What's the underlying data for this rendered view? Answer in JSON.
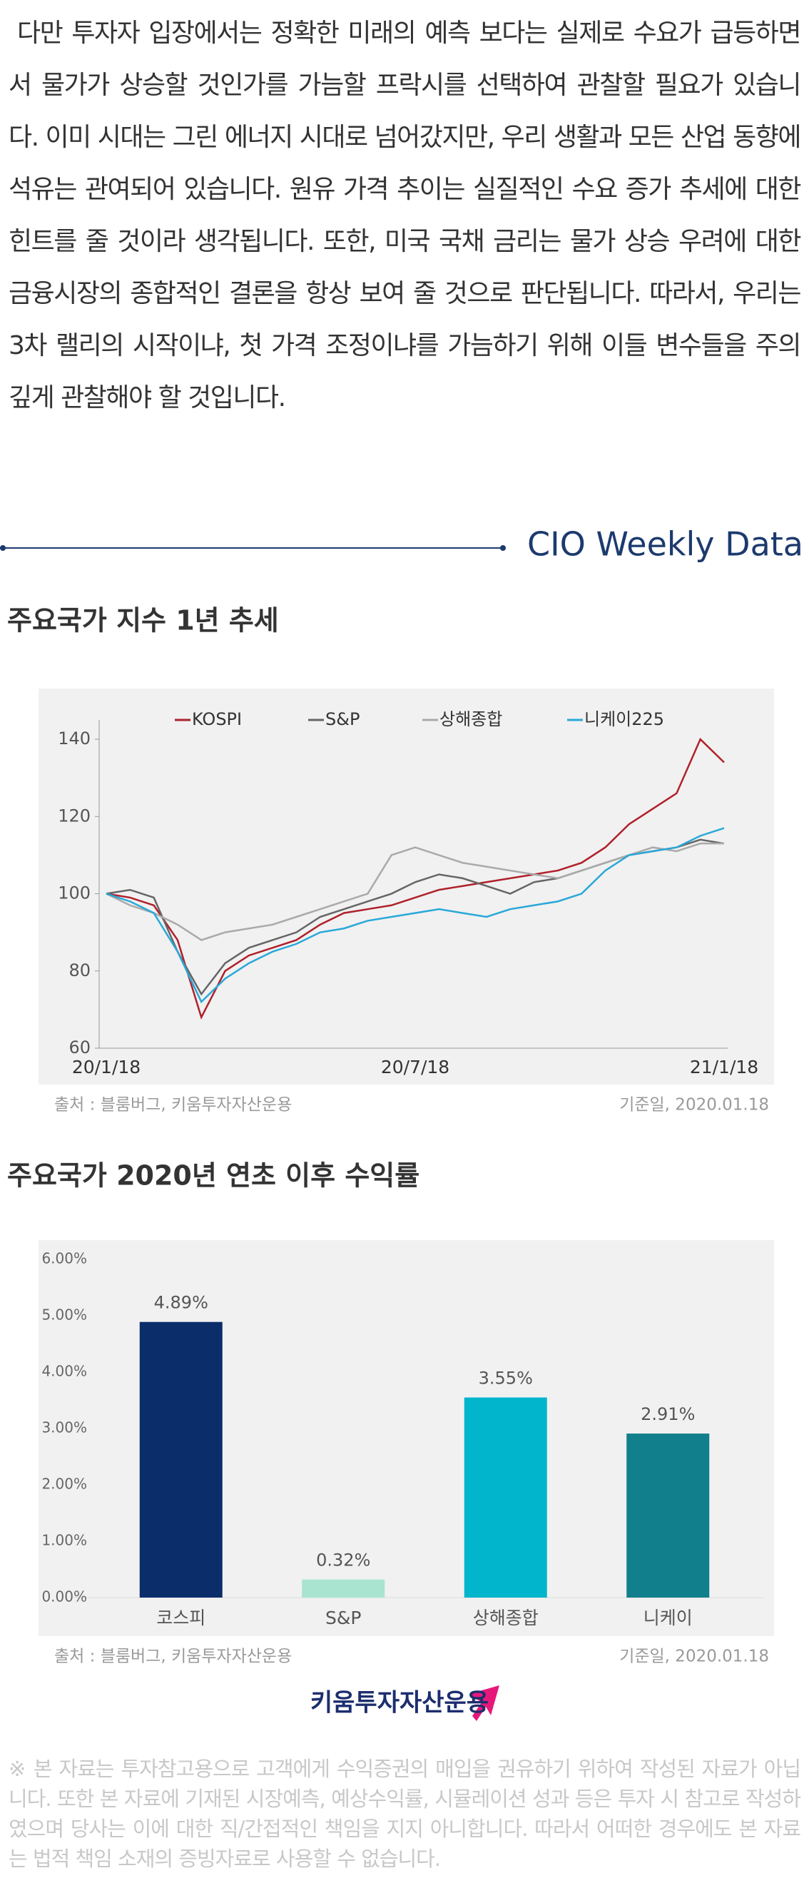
{
  "paragraph": "다만 투자자 입장에서는 정확한 미래의 예측 보다는 실제로 수요가 급등하면서 물가가 상승할 것인가를 가늠할 프락시를 선택하여 관찰할 필요가 있습니다. 이미 시대는 그린 에너지 시대로 넘어갔지만, 우리 생활과 모든 산업 동향에 석유는 관여되어 있습니다. 원유 가격 추이는 실질적인 수요 증가 추세에 대한 힌트를 줄 것이라 생각됩니다. 또한, 미국 국채 금리는 물가 상승 우려에 대한 금융시장의 종합적인 결론을 항상 보여 줄 것으로 판단됩니다. 따라서, 우리는 3차 랠리의 시작이냐, 첫 가격 조정이냐를 가늠하기 위해 이들 변수들을 주의 깊게 관찰해야 할 것입니다.",
  "section_label": "CIO Weekly Data",
  "chart_data": [
    {
      "type": "line",
      "title": "주요국가 지수 1년 추세",
      "categories": [
        "20/1/18",
        null,
        null,
        null,
        null,
        null,
        null,
        null,
        null,
        null,
        null,
        null,
        null,
        "20/7/18",
        null,
        null,
        null,
        null,
        null,
        null,
        null,
        null,
        null,
        null,
        null,
        null,
        "21/1/18"
      ],
      "series": [
        {
          "name": "KOSPI",
          "color": "#b0202a",
          "values": [
            100,
            99,
            97,
            88,
            68,
            80,
            84,
            86,
            88,
            92,
            95,
            96,
            97,
            99,
            101,
            102,
            103,
            104,
            105,
            106,
            108,
            112,
            118,
            122,
            126,
            140,
            134
          ]
        },
        {
          "name": "S&P",
          "color": "#666666",
          "values": [
            100,
            101,
            99,
            85,
            74,
            82,
            86,
            88,
            90,
            94,
            96,
            98,
            100,
            103,
            105,
            104,
            102,
            100,
            103,
            104,
            106,
            108,
            110,
            111,
            112,
            114,
            113
          ]
        },
        {
          "name": "상해종합",
          "color": "#aaaaaa",
          "values": [
            100,
            97,
            95,
            92,
            88,
            90,
            91,
            92,
            94,
            96,
            98,
            100,
            110,
            112,
            110,
            108,
            107,
            106,
            105,
            104,
            106,
            108,
            110,
            112,
            111,
            113,
            113
          ]
        },
        {
          "name": "니케이225",
          "color": "#29a8d8",
          "values": [
            100,
            98,
            95,
            85,
            72,
            78,
            82,
            85,
            87,
            90,
            91,
            93,
            94,
            95,
            96,
            95,
            94,
            96,
            97,
            98,
            100,
            106,
            110,
            111,
            112,
            115,
            117
          ]
        }
      ],
      "ylim": [
        60,
        145
      ],
      "yticks": [
        60,
        80,
        100,
        120,
        140
      ],
      "grid": false,
      "legend": "top",
      "source": "출처 : 블룸버그, 키움투자자산운용",
      "date": "기준일, 2020.01.18"
    },
    {
      "type": "bar",
      "title": "주요국가 2020년 연초 이후 수익률",
      "categories": [
        "코스피",
        "S&P",
        "상해종합",
        "니케이"
      ],
      "values": [
        4.89,
        0.32,
        3.55,
        2.91
      ],
      "value_labels": [
        "4.89%",
        "0.32%",
        "3.55%",
        "2.91%"
      ],
      "colors": [
        "#0b2e6b",
        "#a8e4cf",
        "#00b5cc",
        "#127f8c"
      ],
      "ylim": [
        0,
        6
      ],
      "yticks": [
        {
          "value": 0,
          "label": "0.00%"
        },
        {
          "value": 1,
          "label": "1.00%"
        },
        {
          "value": 2,
          "label": "2.00%"
        },
        {
          "value": 3,
          "label": "3.00%"
        },
        {
          "value": 4,
          "label": "4.00%"
        },
        {
          "value": 5,
          "label": "5.00%"
        },
        {
          "value": 6,
          "label": "6.00%"
        }
      ],
      "grid": false,
      "source": "출처 : 블룸버그, 키움투자자산운용",
      "date": "기준일, 2020.01.18"
    }
  ],
  "logo": "키움투자자산운용",
  "disclaimer": "※ 본 자료는 투자참고용으로 고객에게 수익증권의 매입을 권유하기 위하여 작성된 자료가 아닙니다. 또한 본 자료에 기재된 시장예측, 예상수익률, 시뮬레이션 성과 등은 투자 시 참고로 작성하였으며 당사는 이에 대한 직/간접적인 책임을 지지 아니합니다. 따라서 어떠한 경우에도 본 자료는 법적 책임 소재의 증빙자료로 사용할 수 없습니다."
}
